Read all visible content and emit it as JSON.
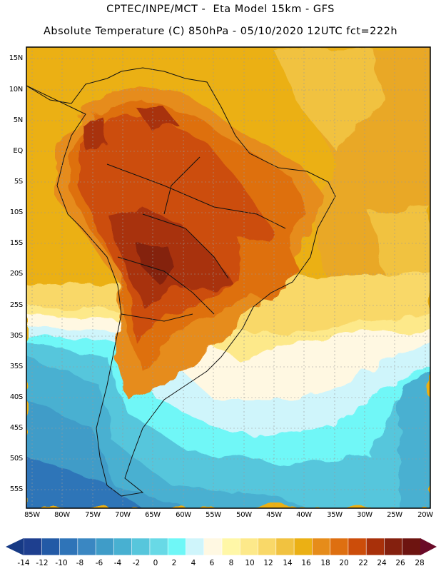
{
  "header": {
    "title_line1": "CPTEC/INPE/MCT -  Eta Model 15km - GFS",
    "title_line2": "Absolute Temperature (C) 850hPa - 05/10/2020 12UTC fct=222h"
  },
  "map": {
    "latitude_labels": [
      "15N",
      "10N",
      "5N",
      "EQ",
      "5S",
      "10S",
      "15S",
      "20S",
      "25S",
      "30S",
      "35S",
      "40S",
      "45S",
      "50S",
      "55S"
    ],
    "longitude_labels": [
      "85W",
      "80W",
      "75W",
      "70W",
      "65W",
      "60W",
      "55W",
      "50W",
      "45W",
      "40W",
      "35W",
      "30W",
      "25W",
      "20W"
    ]
  },
  "colorbar": {
    "tick_labels": [
      "-14",
      "-12",
      "-10",
      "-8",
      "-6",
      "-4",
      "-2",
      "0",
      "2",
      "4",
      "6",
      "8",
      "10",
      "12",
      "14",
      "16",
      "18",
      "20",
      "22",
      "24",
      "26",
      "28"
    ],
    "colors": [
      "#1e3f8f",
      "#235aa6",
      "#2f74b8",
      "#3a87c2",
      "#3f9cc8",
      "#48b0d1",
      "#57c6dc",
      "#68d9e6",
      "#6ff7f7",
      "#cff5fb",
      "#fff8e2",
      "#fff7a7",
      "#fde98a",
      "#f9d868",
      "#f1c240",
      "#ebb014",
      "#e68c1a",
      "#de6f10",
      "#cc4d0a",
      "#a8300a",
      "#84200e",
      "#6d1410"
    ],
    "under_color": "#173a85",
    "over_color": "#6a0a28"
  }
}
